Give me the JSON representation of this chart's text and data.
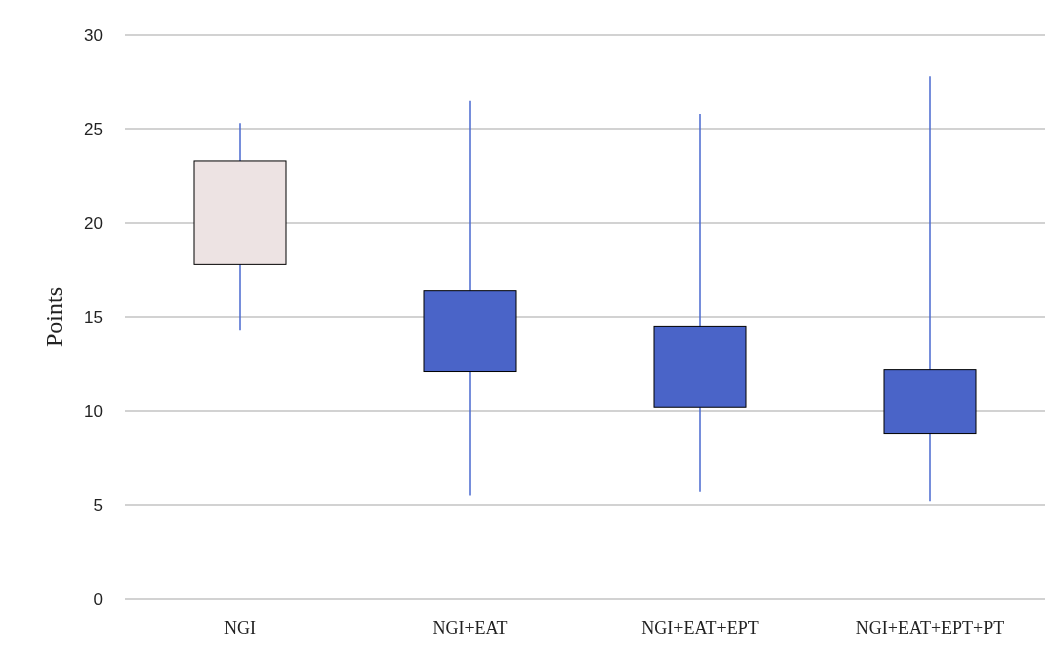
{
  "chart_data": {
    "type": "candlestick",
    "ylabel": "Points",
    "categories": [
      "NGI",
      "NGI+EAT",
      "NGI+EAT+EPT",
      "NGI+EAT+EPT+PT"
    ],
    "ohlc": [
      [
        17.8,
        25.3,
        14.3,
        23.3
      ],
      [
        16.4,
        26.5,
        5.5,
        12.1
      ],
      [
        14.5,
        25.8,
        5.7,
        10.2
      ],
      [
        12.2,
        27.8,
        5.2,
        8.8
      ]
    ],
    "colors": [
      "#ede3e3",
      "#4a64c8",
      "#4a64c8",
      "#4a64c8"
    ],
    "color": "#4a6ad0",
    "ylim": [
      0,
      30
    ],
    "yticks": [
      0,
      5,
      10,
      15,
      20,
      25,
      30
    ],
    "grid": "y"
  }
}
